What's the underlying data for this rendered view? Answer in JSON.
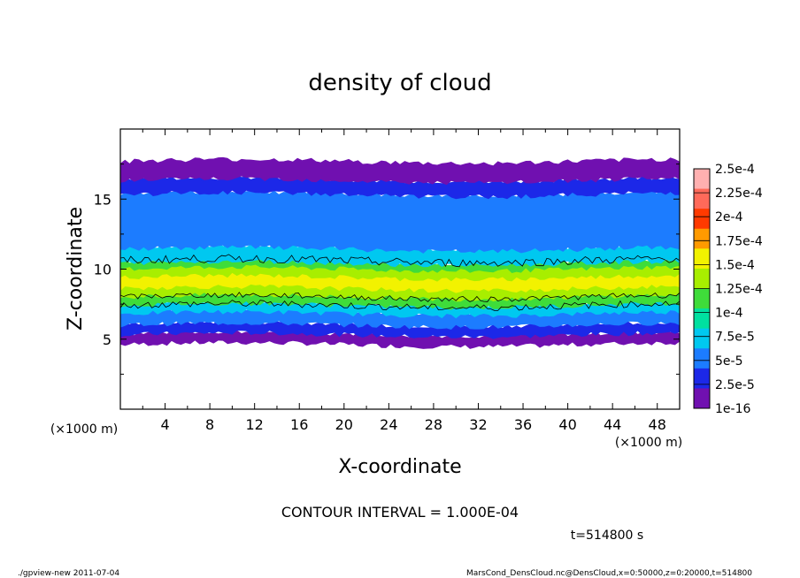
{
  "chart_data": {
    "type": "heatmap",
    "title": "density of cloud",
    "xlabel": "X-coordinate",
    "ylabel": "Z-coordinate",
    "x_unit_left": "(×1000 m)",
    "x_unit_right": "(×1000 m)",
    "xlim": [
      0,
      50
    ],
    "ylim": [
      0,
      20
    ],
    "x_ticks": [
      "4",
      "8",
      "12",
      "16",
      "20",
      "24",
      "28",
      "32",
      "36",
      "40",
      "44",
      "48"
    ],
    "y_ticks": [
      "5",
      "10",
      "15"
    ],
    "colorbar_labels": [
      "2.5e-4",
      "2.25e-4",
      "2e-4",
      "1.75e-4",
      "1.5e-4",
      "1.25e-4",
      "1e-4",
      "7.5e-5",
      "5e-5",
      "2.5e-5",
      "1e-16"
    ],
    "colorbar_colors": [
      "#ffb0b0",
      "#ff6a5a",
      "#ff3a00",
      "#ff9a00",
      "#f2f200",
      "#a8ee00",
      "#3fdc3a",
      "#00e0a0",
      "#00c8f0",
      "#1c7cff",
      "#1c28e8",
      "#7010b0"
    ],
    "layers": [
      {
        "z_bottom": 4.6,
        "z_top": 5.4,
        "level": "1e-16",
        "color": "#7010b0"
      },
      {
        "z_bottom": 5.3,
        "z_top": 6.1,
        "level": "2.5e-5",
        "color": "#1c28e8"
      },
      {
        "z_bottom": 6.0,
        "z_top": 7.0,
        "level": "5e-5",
        "color": "#1c7cff"
      },
      {
        "z_bottom": 6.8,
        "z_top": 7.6,
        "level": "7.5e-5",
        "color": "#00c8f0"
      },
      {
        "z_bottom": 7.4,
        "z_top": 10.6,
        "level": "1e-4",
        "color": "#3fdc3a"
      },
      {
        "z_bottom": 8.0,
        "z_top": 10.0,
        "level": "1.25e-4",
        "color": "#a8ee00"
      },
      {
        "z_bottom": 8.6,
        "z_top": 9.4,
        "level": "1.5e-4",
        "color": "#f2f200"
      },
      {
        "z_bottom": 10.4,
        "z_top": 11.6,
        "level": "7.5e-5",
        "color": "#00c8f0"
      },
      {
        "z_bottom": 11.4,
        "z_top": 15.4,
        "level": "5e-5",
        "color": "#1c7cff"
      },
      {
        "z_bottom": 15.3,
        "z_top": 16.4,
        "level": "2.5e-5",
        "color": "#1c28e8"
      },
      {
        "z_bottom": 16.3,
        "z_top": 17.7,
        "level": "1e-16",
        "color": "#7010b0"
      }
    ],
    "contour_interval_text": "CONTOUR INTERVAL = 1.000E-04",
    "time_text": "t=514800 s",
    "grid": false,
    "legend": "colorbar-right"
  },
  "footer": {
    "left": "./gpview-new   2011-07-04",
    "right": "MarsCond_DensCloud.nc@DensCloud,x=0:50000,z=0:20000,t=514800"
  }
}
